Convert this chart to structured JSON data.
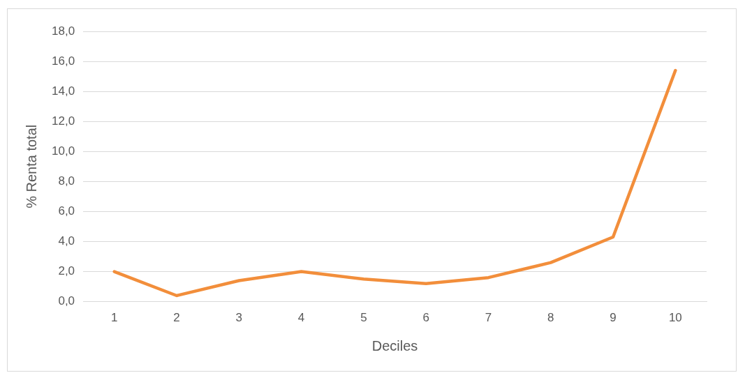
{
  "chart_data": {
    "type": "line",
    "xlabel": "Deciles",
    "ylabel": "% Renta total",
    "categories": [
      "1",
      "2",
      "3",
      "4",
      "5",
      "6",
      "7",
      "8",
      "9",
      "10"
    ],
    "series": [
      {
        "color": "#f28e3b",
        "values": [
          2.0,
          0.4,
          1.4,
          2.0,
          1.5,
          1.2,
          1.6,
          2.6,
          4.3,
          15.4
        ]
      }
    ],
    "ylim": [
      0,
      18
    ],
    "yticks": [
      {
        "value": 0,
        "label": "0,0"
      },
      {
        "value": 2,
        "label": "2,0"
      },
      {
        "value": 4,
        "label": "4,0"
      },
      {
        "value": 6,
        "label": "6,0"
      },
      {
        "value": 8,
        "label": "8,0"
      },
      {
        "value": 10,
        "label": "10,0"
      },
      {
        "value": 12,
        "label": "12,0"
      },
      {
        "value": 14,
        "label": "14,0"
      },
      {
        "value": 16,
        "label": "16,0"
      },
      {
        "value": 18,
        "label": "18,0"
      }
    ],
    "grid": "y",
    "marker": "none",
    "line_style": "solid",
    "legend": false
  }
}
